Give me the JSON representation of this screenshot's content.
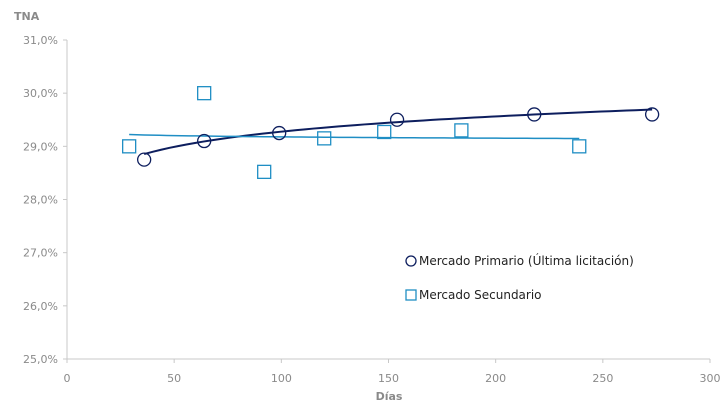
{
  "chart_data": {
    "type": "scatter",
    "title": "",
    "xlabel": "Días",
    "ylabel": "TNA",
    "xlim": [
      0,
      300
    ],
    "ylim": [
      25.0,
      31.0
    ],
    "x_ticks": [
      0,
      50,
      100,
      150,
      200,
      250,
      300
    ],
    "y_ticks": [
      25.0,
      26.0,
      27.0,
      28.0,
      29.0,
      30.0,
      31.0
    ],
    "x_tick_labels": [
      "0",
      "50",
      "100",
      "150",
      "200",
      "250",
      "300"
    ],
    "y_tick_labels": [
      "25,0%",
      "26,0%",
      "27,0%",
      "28,0%",
      "29,0%",
      "30,0%",
      "31,0%"
    ],
    "grid": false,
    "legend_position": "right-middle",
    "series": [
      {
        "name": "Mercado Primario (Última licitación)",
        "marker": "circle",
        "color": "#0d1e5e",
        "points": [
          {
            "x": 36,
            "y": 28.75
          },
          {
            "x": 64,
            "y": 29.1
          },
          {
            "x": 99,
            "y": 29.25
          },
          {
            "x": 154,
            "y": 29.5
          },
          {
            "x": 218,
            "y": 29.6
          },
          {
            "x": 273,
            "y": 29.6
          }
        ],
        "trend": {
          "type": "logarithmic",
          "x_range": [
            36,
            273
          ],
          "a": 27.3727,
          "b": 0.4134
        }
      },
      {
        "name": "Mercado Secundario",
        "marker": "square",
        "color": "#1f8ec4",
        "points": [
          {
            "x": 29,
            "y": 29.0
          },
          {
            "x": 64,
            "y": 30.0
          },
          {
            "x": 92,
            "y": 28.52
          },
          {
            "x": 120,
            "y": 29.15
          },
          {
            "x": 148,
            "y": 29.27
          },
          {
            "x": 184,
            "y": 29.3
          },
          {
            "x": 239,
            "y": 29.0
          }
        ],
        "trend": {
          "type": "logarithmic",
          "x_range": [
            29,
            239
          ],
          "a": 29.34,
          "b": -0.0352
        }
      }
    ]
  }
}
